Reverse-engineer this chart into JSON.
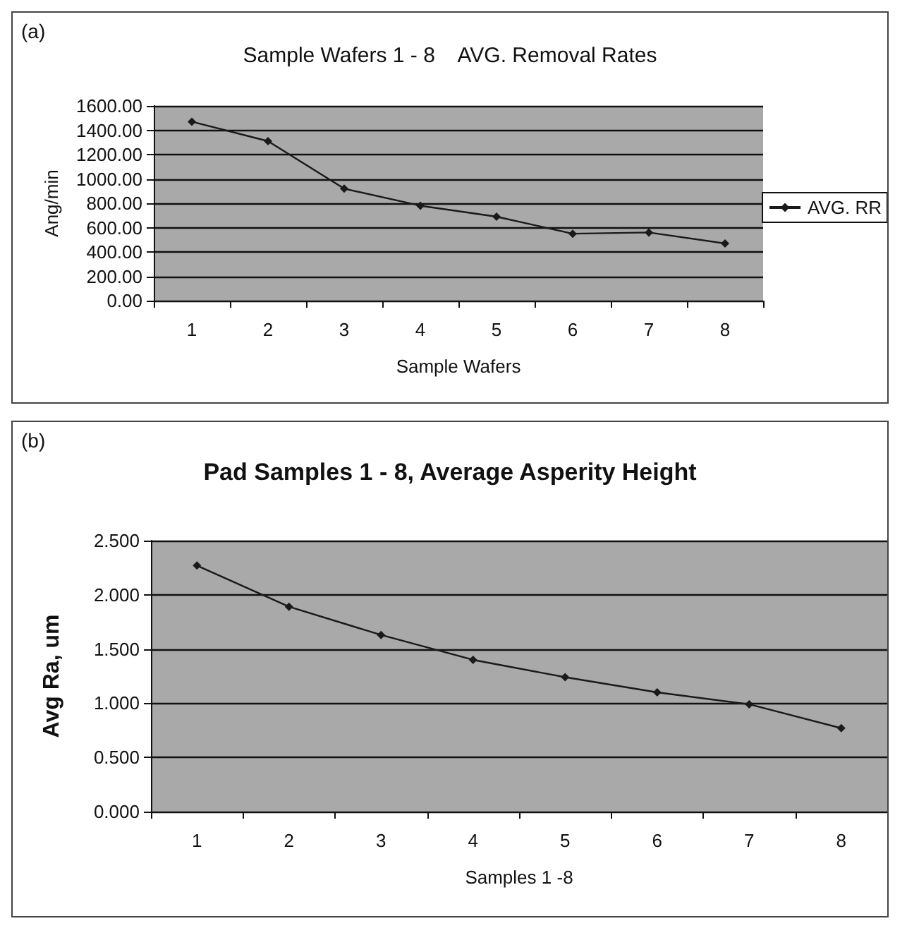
{
  "chart_data": [
    {
      "type": "line",
      "title": "Sample Wafers 1 - 8    AVG. Removal Rates",
      "xlabel": "Sample Wafers",
      "ylabel": "Ang/min",
      "annotations": [
        "(a)"
      ],
      "categories": [
        "1",
        "2",
        "3",
        "4",
        "5",
        "6",
        "7",
        "8"
      ],
      "series": [
        {
          "name": "AVG. RR",
          "color": "#1a1a1a",
          "values": [
            1470,
            1310,
            920,
            780,
            690,
            550,
            560,
            470
          ]
        }
      ],
      "ylim": [
        0,
        1600
      ],
      "yticks": [
        {
          "value": 0,
          "label": "0.00"
        },
        {
          "value": 200,
          "label": "200.00"
        },
        {
          "value": 400,
          "label": "400.00"
        },
        {
          "value": 600,
          "label": "600.00"
        },
        {
          "value": 800,
          "label": "800.00"
        },
        {
          "value": 1000,
          "label": "1000.00"
        },
        {
          "value": 1200,
          "label": "1200.00"
        },
        {
          "value": 1400,
          "label": "1400.00"
        },
        {
          "value": 1600,
          "label": "1600.00"
        }
      ],
      "grid": "y",
      "legend": "right",
      "marker": "diamond",
      "line_style": "solid"
    },
    {
      "type": "line",
      "title": "Pad Samples 1 - 8, Average Asperity Height",
      "xlabel": "Samples 1 -8",
      "ylabel": "Avg Ra, um",
      "annotations": [
        "(b)"
      ],
      "categories": [
        "1",
        "2",
        "3",
        "4",
        "5",
        "6",
        "7",
        "8"
      ],
      "series": [
        {
          "color": "#1a1a1a",
          "values": [
            2.27,
            1.89,
            1.63,
            1.4,
            1.24,
            1.1,
            0.99,
            0.77
          ]
        }
      ],
      "ylim": [
        0,
        2.5
      ],
      "yticks": [
        {
          "value": 0,
          "label": "0.000"
        },
        {
          "value": 0.5,
          "label": "0.500"
        },
        {
          "value": 1,
          "label": "1.000"
        },
        {
          "value": 1.5,
          "label": "1.500"
        },
        {
          "value": 2,
          "label": "2.000"
        },
        {
          "value": 2.5,
          "label": "2.500"
        }
      ],
      "grid": "y",
      "legend": false,
      "marker": "diamond",
      "line_style": "solid"
    }
  ]
}
